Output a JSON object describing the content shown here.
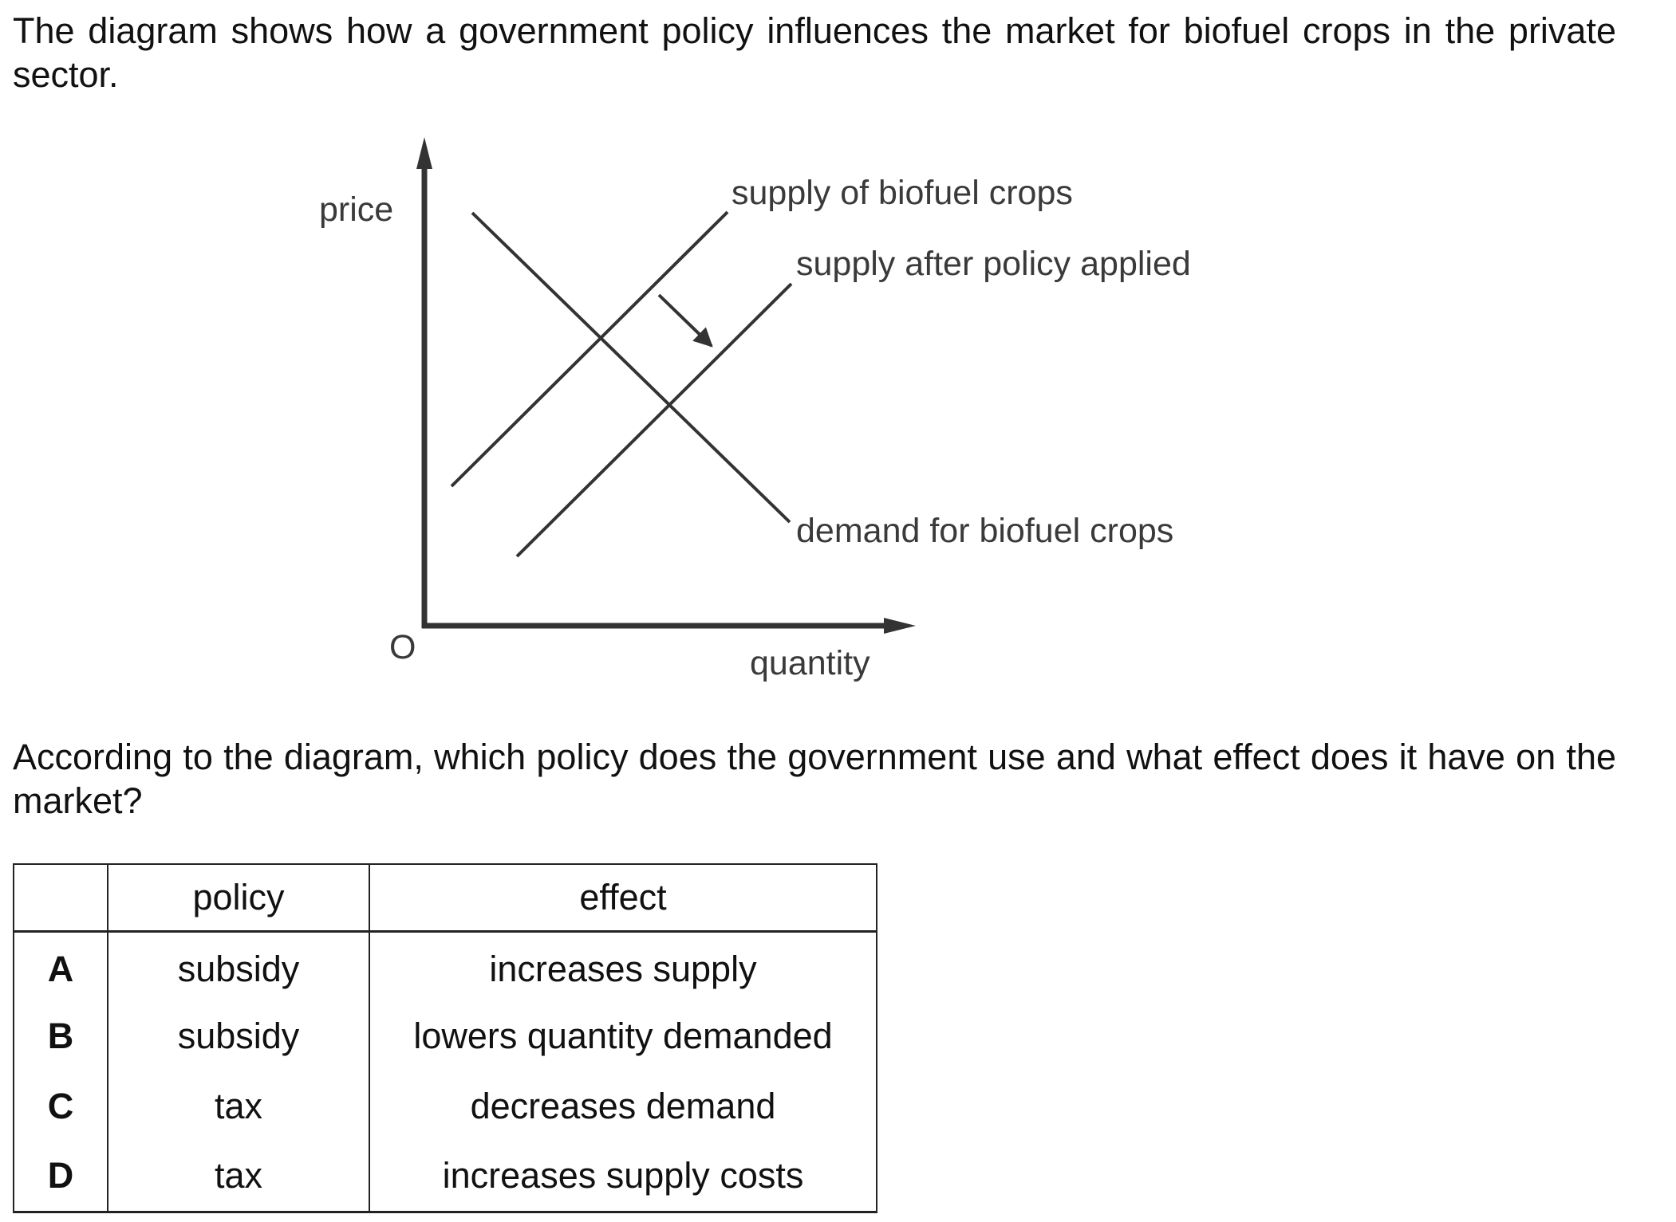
{
  "intro_text": "The diagram shows how a government policy influences the market for biofuel crops in the private sector.",
  "diagram": {
    "y_axis_label": "price",
    "x_axis_label": "quantity",
    "origin_label": "O",
    "supply_label": "supply of biofuel crops",
    "supply_after_label": "supply after policy applied",
    "demand_label": "demand for biofuel crops",
    "shift_direction": "supply curve shifts to the right (downward)"
  },
  "question_text": "According to the diagram, which policy does the government use and what effect does it have on the market?",
  "table": {
    "headers": [
      "",
      "policy",
      "effect"
    ],
    "rows": [
      {
        "letter": "A",
        "policy": "subsidy",
        "effect": "increases supply"
      },
      {
        "letter": "B",
        "policy": "subsidy",
        "effect": "lowers quantity demanded"
      },
      {
        "letter": "C",
        "policy": "tax",
        "effect": "decreases demand"
      },
      {
        "letter": "D",
        "policy": "tax",
        "effect": "increases supply costs"
      }
    ]
  }
}
